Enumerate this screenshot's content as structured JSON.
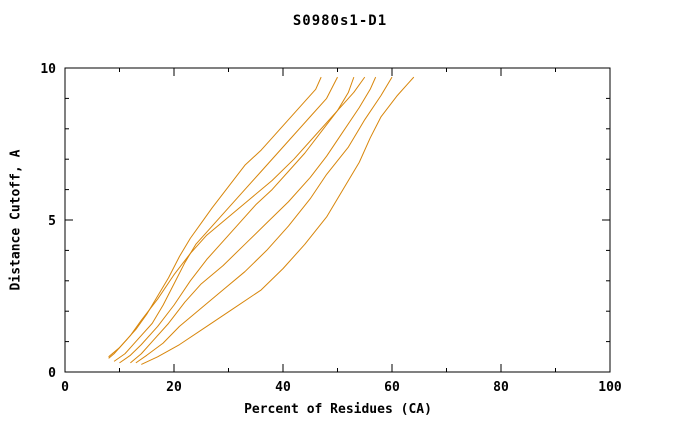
{
  "chart_data": {
    "type": "line",
    "title": "S0980s1-D1",
    "xlabel": "Percent of Residues (CA)",
    "ylabel": "Distance Cutoff, A",
    "xlim": [
      0,
      100
    ],
    "ylim": [
      0,
      10
    ],
    "x_major_ticks": [
      0,
      20,
      40,
      60,
      80,
      100
    ],
    "x_minor_step": 10,
    "y_major_ticks": [
      0,
      5,
      10
    ],
    "y_minor_step": 1,
    "grid": false,
    "legend": "none",
    "line_color": "#d8860b",
    "axis_color": "#000000",
    "background_color": "#ffffff",
    "series": [
      {
        "points": [
          [
            8,
            0.45
          ],
          [
            9,
            0.6
          ],
          [
            11,
            1.0
          ],
          [
            13,
            1.4
          ],
          [
            15,
            1.9
          ],
          [
            17,
            2.5
          ],
          [
            19,
            3.1
          ],
          [
            21,
            3.8
          ],
          [
            23,
            4.4
          ],
          [
            25,
            4.9
          ],
          [
            27,
            5.4
          ],
          [
            30,
            6.1
          ],
          [
            33,
            6.8
          ],
          [
            36,
            7.3
          ],
          [
            38,
            7.7
          ],
          [
            41,
            8.3
          ],
          [
            44,
            8.9
          ],
          [
            46,
            9.3
          ],
          [
            47,
            9.7
          ]
        ]
      },
      {
        "points": [
          [
            9,
            0.35
          ],
          [
            11,
            0.6
          ],
          [
            13,
            1.0
          ],
          [
            16,
            1.6
          ],
          [
            18,
            2.2
          ],
          [
            20,
            2.9
          ],
          [
            22,
            3.6
          ],
          [
            24,
            4.2
          ],
          [
            27,
            4.8
          ],
          [
            30,
            5.4
          ],
          [
            33,
            6.0
          ],
          [
            36,
            6.6
          ],
          [
            39,
            7.2
          ],
          [
            42,
            7.8
          ],
          [
            45,
            8.4
          ],
          [
            48,
            9.0
          ],
          [
            50,
            9.7
          ]
        ]
      },
      {
        "points": [
          [
            10,
            0.3
          ],
          [
            12,
            0.55
          ],
          [
            14,
            0.9
          ],
          [
            17,
            1.5
          ],
          [
            20,
            2.2
          ],
          [
            23,
            3.0
          ],
          [
            26,
            3.7
          ],
          [
            29,
            4.3
          ],
          [
            32,
            4.9
          ],
          [
            35,
            5.5
          ],
          [
            38,
            6.0
          ],
          [
            41,
            6.6
          ],
          [
            44,
            7.2
          ],
          [
            47,
            7.9
          ],
          [
            50,
            8.6
          ],
          [
            52,
            9.2
          ],
          [
            53,
            9.7
          ]
        ]
      },
      {
        "points": [
          [
            8,
            0.5
          ],
          [
            10,
            0.8
          ],
          [
            12,
            1.2
          ],
          [
            14,
            1.7
          ],
          [
            17,
            2.4
          ],
          [
            20,
            3.2
          ],
          [
            23,
            3.9
          ],
          [
            26,
            4.5
          ],
          [
            30,
            5.1
          ],
          [
            34,
            5.7
          ],
          [
            38,
            6.3
          ],
          [
            42,
            7.0
          ],
          [
            46,
            7.8
          ],
          [
            50,
            8.6
          ],
          [
            53,
            9.2
          ],
          [
            55,
            9.7
          ]
        ]
      },
      {
        "points": [
          [
            12,
            0.3
          ],
          [
            14,
            0.6
          ],
          [
            16,
            1.0
          ],
          [
            19,
            1.6
          ],
          [
            22,
            2.3
          ],
          [
            25,
            2.9
          ],
          [
            29,
            3.5
          ],
          [
            33,
            4.2
          ],
          [
            37,
            4.9
          ],
          [
            41,
            5.6
          ],
          [
            45,
            6.4
          ],
          [
            48,
            7.1
          ],
          [
            51,
            7.9
          ],
          [
            54,
            8.7
          ],
          [
            56,
            9.3
          ],
          [
            57,
            9.7
          ]
        ]
      },
      {
        "points": [
          [
            13,
            0.3
          ],
          [
            15,
            0.55
          ],
          [
            18,
            0.95
          ],
          [
            21,
            1.5
          ],
          [
            25,
            2.1
          ],
          [
            29,
            2.7
          ],
          [
            33,
            3.3
          ],
          [
            37,
            4.0
          ],
          [
            41,
            4.8
          ],
          [
            45,
            5.7
          ],
          [
            48,
            6.5
          ],
          [
            52,
            7.4
          ],
          [
            55,
            8.3
          ],
          [
            58,
            9.1
          ],
          [
            60,
            9.7
          ]
        ]
      },
      {
        "points": [
          [
            14,
            0.25
          ],
          [
            17,
            0.5
          ],
          [
            21,
            0.9
          ],
          [
            26,
            1.5
          ],
          [
            31,
            2.1
          ],
          [
            36,
            2.7
          ],
          [
            40,
            3.4
          ],
          [
            44,
            4.2
          ],
          [
            48,
            5.1
          ],
          [
            51,
            6.0
          ],
          [
            54,
            6.9
          ],
          [
            56,
            7.7
          ],
          [
            58,
            8.4
          ],
          [
            61,
            9.1
          ],
          [
            63,
            9.5
          ],
          [
            64,
            9.7
          ]
        ]
      }
    ]
  }
}
